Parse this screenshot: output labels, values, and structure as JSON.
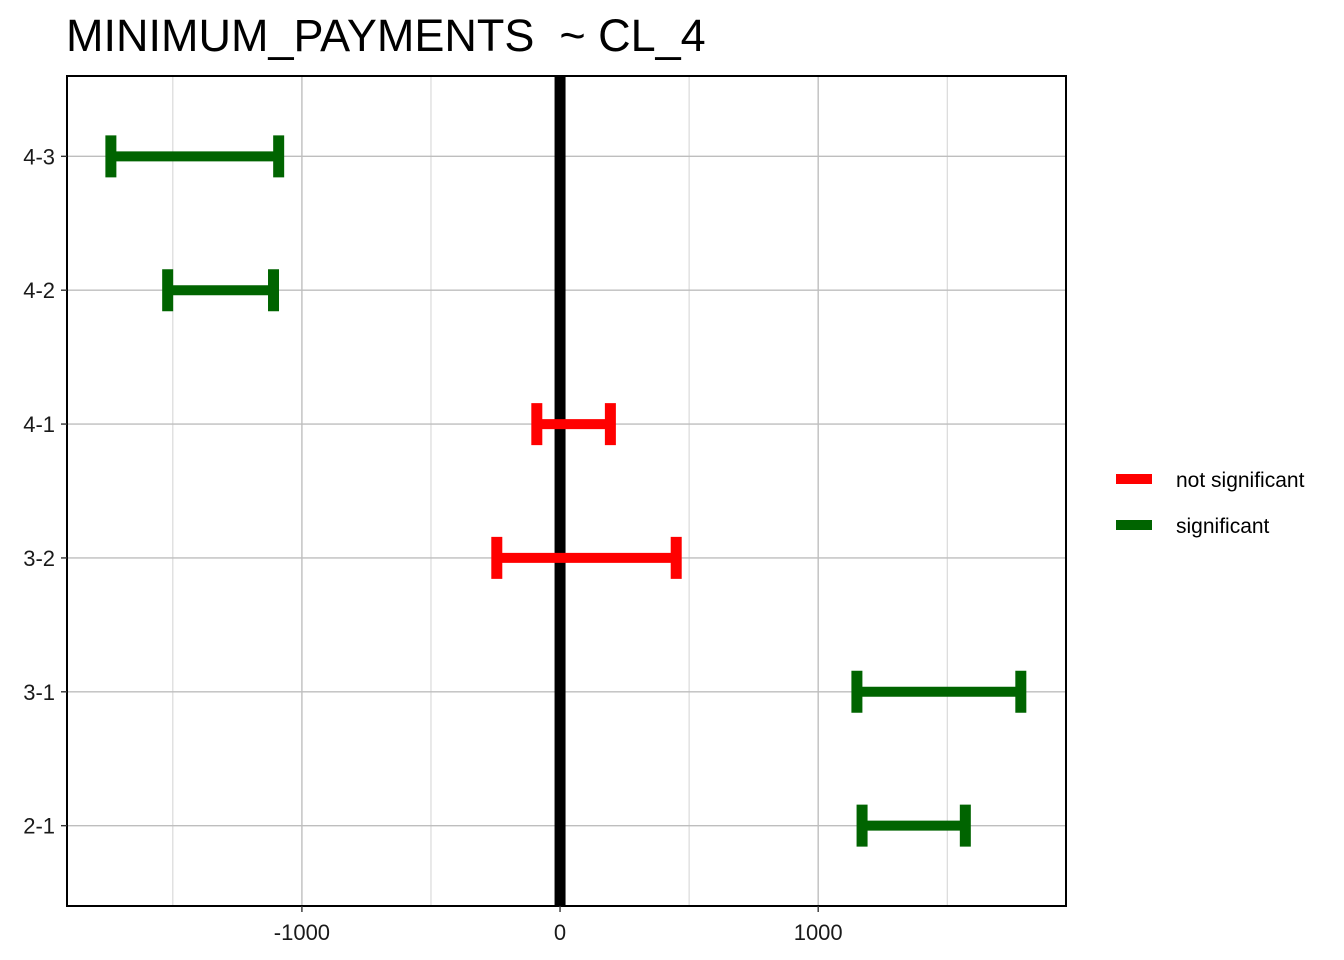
{
  "chart_data": {
    "type": "errorbar",
    "title": "MINIMUM_PAYMENTS  ~ CL_4",
    "xlabel": "",
    "ylabel": "",
    "xlim": [
      -1910,
      1960
    ],
    "x_ticks": [
      -1000,
      0,
      1000
    ],
    "x_minor_ticks": [
      -1500,
      -500,
      500,
      1500
    ],
    "categories": [
      "2-1",
      "3-1",
      "3-2",
      "4-1",
      "4-2",
      "4-3"
    ],
    "reference_line_x": 0,
    "grid": true,
    "legend_position": "right",
    "legend": [
      {
        "name": "not significant",
        "color": "#ff0000"
      },
      {
        "name": "significant",
        "color": "#006400"
      }
    ],
    "intervals": [
      {
        "label": "4-3",
        "low": -1740,
        "high": -1090,
        "status": "significant"
      },
      {
        "label": "4-2",
        "low": -1520,
        "high": -1110,
        "status": "significant"
      },
      {
        "label": "4-1",
        "low": -90,
        "high": 195,
        "status": "not significant"
      },
      {
        "label": "3-2",
        "low": -245,
        "high": 450,
        "status": "not significant"
      },
      {
        "label": "3-1",
        "low": 1150,
        "high": 1785,
        "status": "significant"
      },
      {
        "label": "2-1",
        "low": 1170,
        "high": 1570,
        "status": "significant"
      }
    ]
  }
}
